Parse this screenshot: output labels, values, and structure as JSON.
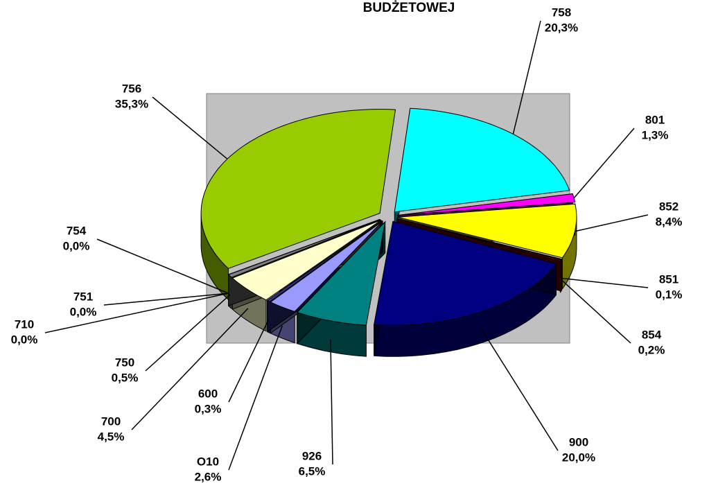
{
  "chart_data": {
    "type": "pie",
    "title": "BUDŻETOWEJ",
    "categories": [
      "758",
      "801",
      "852",
      "851",
      "854",
      "900",
      "926",
      "O10",
      "600",
      "700",
      "750",
      "710",
      "751",
      "754",
      "756"
    ],
    "values": [
      20.3,
      1.3,
      8.4,
      0.1,
      0.2,
      20.0,
      6.5,
      2.6,
      0.3,
      4.5,
      0.5,
      0.0,
      0.0,
      0.0,
      35.3
    ],
    "value_labels": [
      "20,3%",
      "1,3%",
      "8,4%",
      "0,1%",
      "0,2%",
      "20,0%",
      "6,5%",
      "2,6%",
      "0,3%",
      "4,5%",
      "0,5%",
      "0,0%",
      "0,0%",
      "0,0%",
      "35,3%"
    ],
    "colors": [
      "#00FFFF",
      "#FF00FF",
      "#FFFF00",
      "#660066",
      "#800000",
      "#000080",
      "#008080",
      "#9999FF",
      "#333399",
      "#FFFFCC",
      "#808080",
      "#FF0000",
      "#993366",
      "#0066CC",
      "#99CC00"
    ]
  }
}
